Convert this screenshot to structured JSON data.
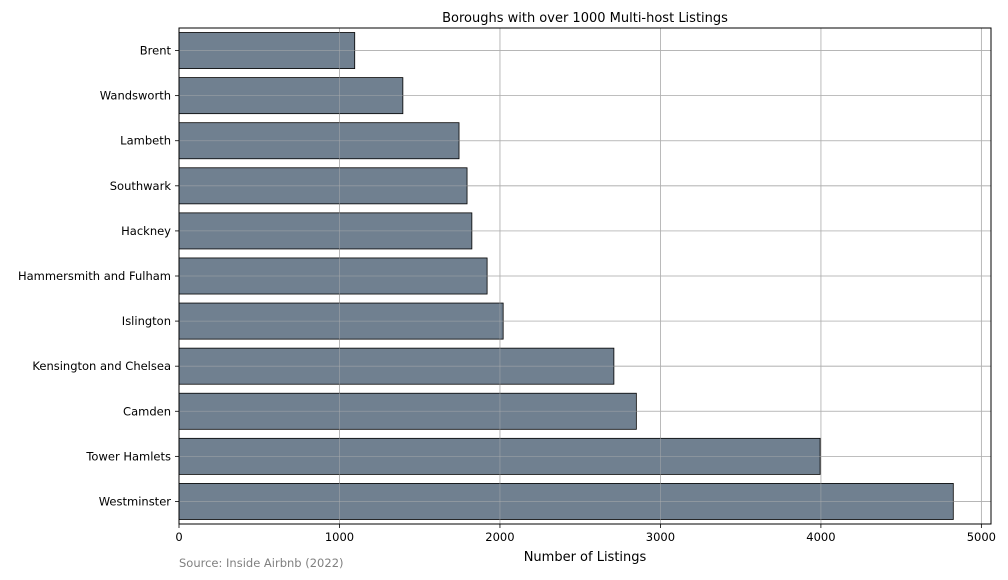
{
  "chart_data": {
    "type": "bar",
    "orientation": "horizontal",
    "title": "Boroughs with over 1000 Multi-host Listings",
    "xlabel": "Number of Listings",
    "ylabel": "",
    "categories": [
      "Brent",
      "Wandsworth",
      "Lambeth",
      "Southwark",
      "Hackney",
      "Hammersmith and Fulham",
      "Islington",
      "Kensington and Chelsea",
      "Camden",
      "Tower Hamlets",
      "Westminster"
    ],
    "values": [
      1095,
      1395,
      1745,
      1795,
      1825,
      1920,
      2020,
      2710,
      2850,
      3995,
      4825
    ],
    "xlim": [
      0,
      5060
    ],
    "xticks": [
      0,
      1000,
      2000,
      3000,
      4000,
      5000
    ],
    "xtick_labels": [
      "0",
      "1000",
      "2000",
      "3000",
      "4000",
      "5000"
    ],
    "grid": true,
    "bar_color": "#708090",
    "bar_edge_color": "#000000",
    "source_note": "Source: Inside Airbnb (2022)"
  }
}
